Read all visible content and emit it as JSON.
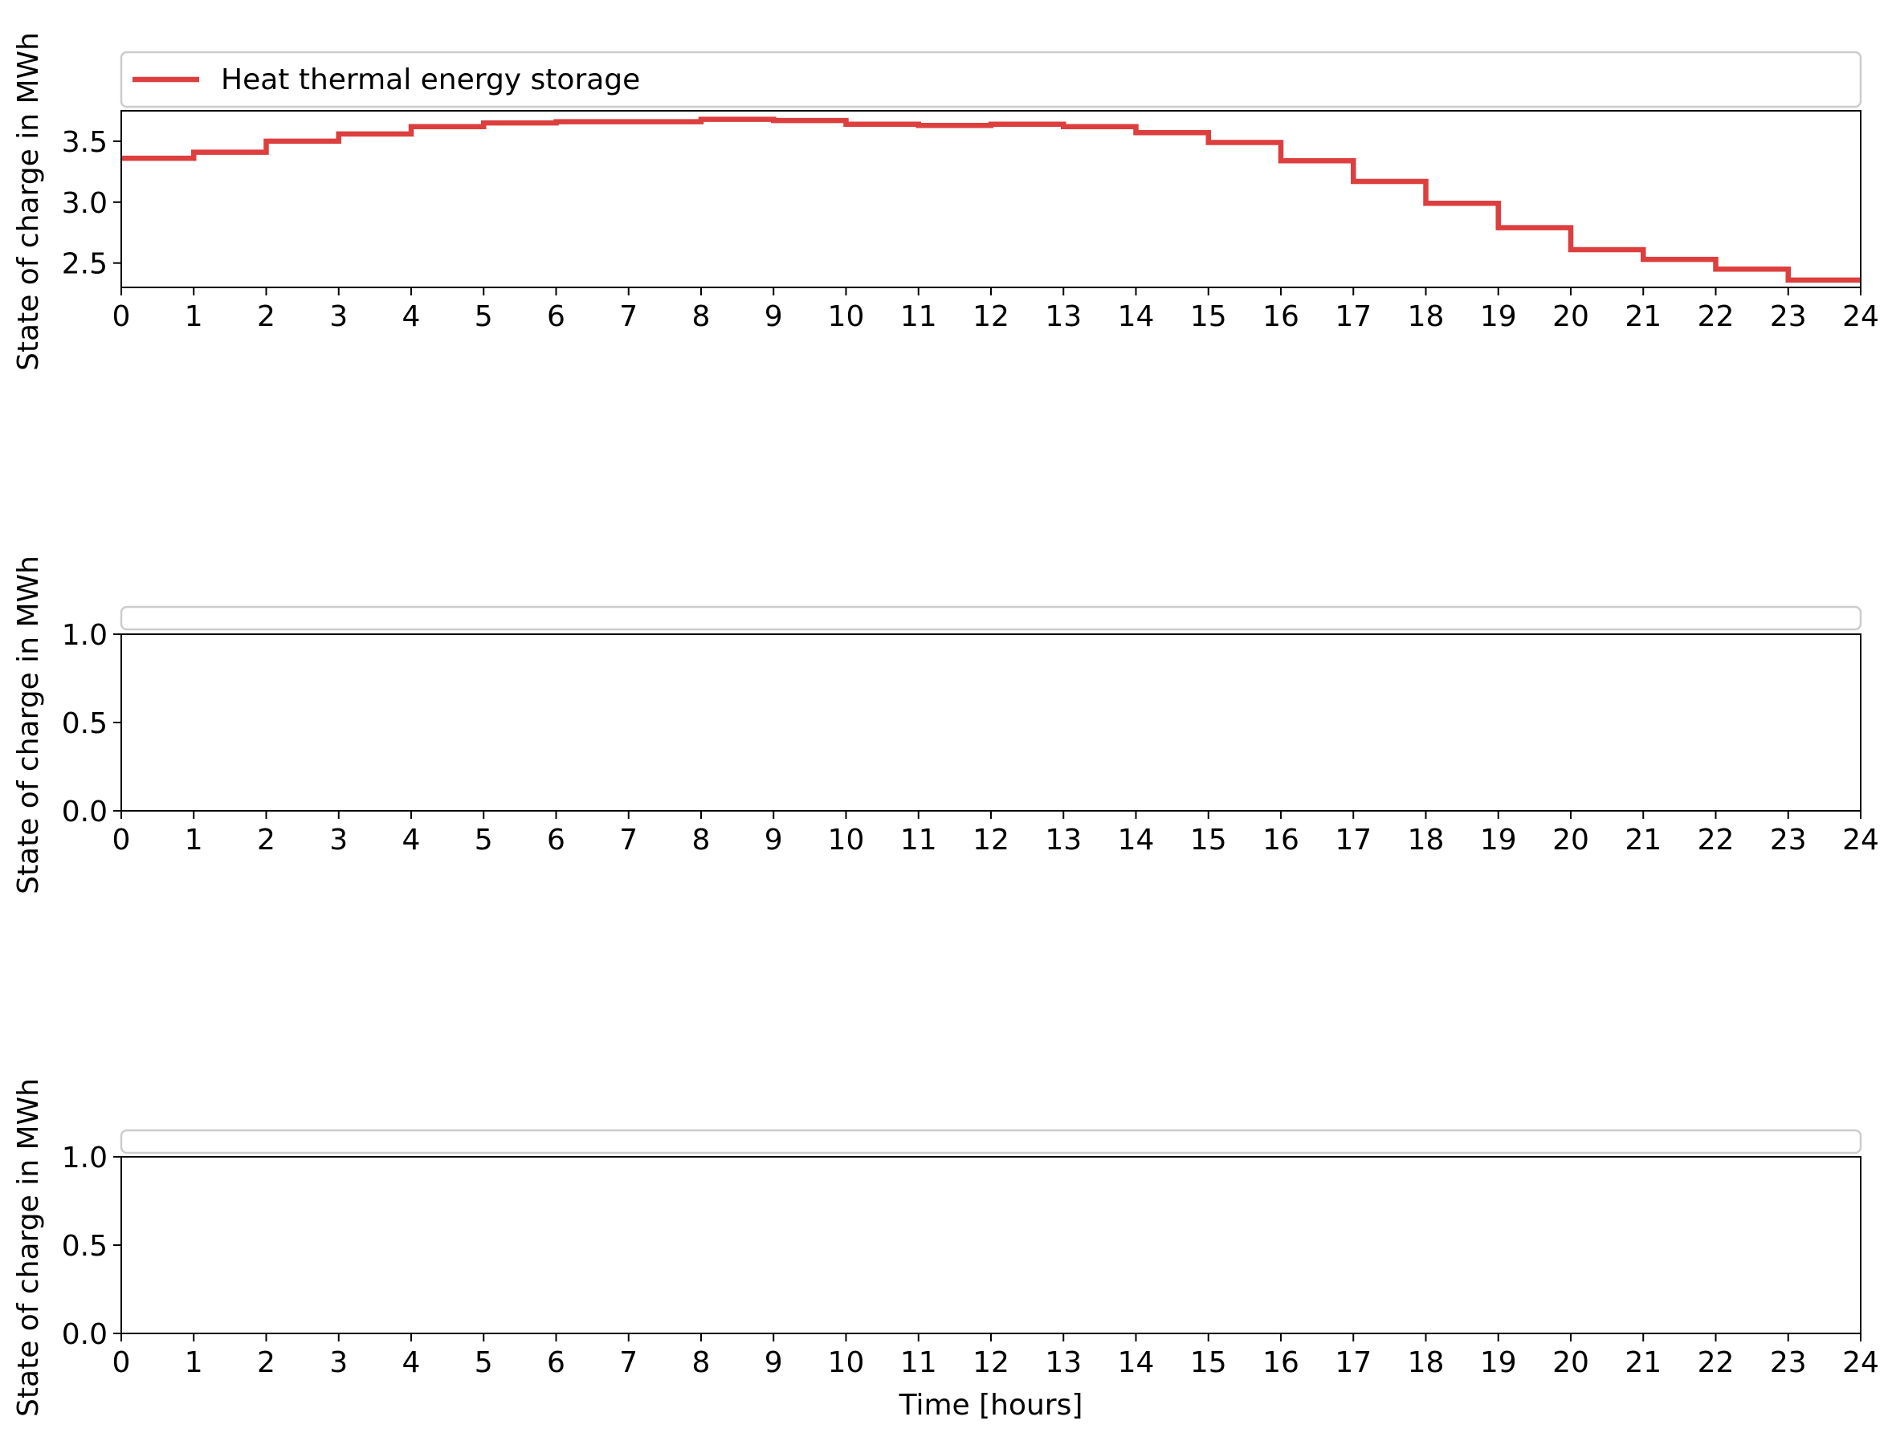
{
  "chart_data": [
    {
      "type": "line",
      "step": "post",
      "xlabel": "",
      "ylabel": "State of charge in MWh",
      "xlim": [
        0,
        24
      ],
      "ylim": [
        2.3,
        3.75
      ],
      "xticks": [
        0,
        1,
        2,
        3,
        4,
        5,
        6,
        7,
        8,
        9,
        10,
        11,
        12,
        13,
        14,
        15,
        16,
        17,
        18,
        19,
        20,
        21,
        22,
        23,
        24
      ],
      "yticks": [
        2.5,
        3.0,
        3.5
      ],
      "ytick_labels": [
        "2.5",
        "3.0",
        "3.5"
      ],
      "grid": false,
      "legend": "top, above plot",
      "series": [
        {
          "name": "Heat thermal energy storage",
          "color": "#dd3e3e",
          "x": [
            0,
            1,
            2,
            3,
            4,
            5,
            6,
            7,
            8,
            9,
            10,
            11,
            12,
            13,
            14,
            15,
            16,
            17,
            18,
            19,
            20,
            21,
            22,
            23,
            24
          ],
          "y": [
            3.36,
            3.41,
            3.5,
            3.56,
            3.62,
            3.65,
            3.66,
            3.66,
            3.68,
            3.67,
            3.64,
            3.63,
            3.64,
            3.62,
            3.57,
            3.49,
            3.34,
            3.17,
            2.99,
            2.79,
            2.61,
            2.53,
            2.45,
            2.36,
            2.36
          ]
        }
      ]
    },
    {
      "type": "line",
      "xlabel": "",
      "ylabel": "State of charge in MWh",
      "xlim": [
        0,
        24
      ],
      "ylim": [
        0,
        1
      ],
      "xticks": [
        0,
        1,
        2,
        3,
        4,
        5,
        6,
        7,
        8,
        9,
        10,
        11,
        12,
        13,
        14,
        15,
        16,
        17,
        18,
        19,
        20,
        21,
        22,
        23,
        24
      ],
      "yticks": [
        0,
        0.5,
        1.0
      ],
      "ytick_labels": [
        "0.0",
        "0.5",
        "1.0"
      ],
      "grid": false,
      "legend": "top, above plot (empty)",
      "series": []
    },
    {
      "type": "line",
      "xlabel": "Time [hours]",
      "ylabel": "State of charge in MWh",
      "xlim": [
        0,
        24
      ],
      "ylim": [
        0,
        1
      ],
      "xticks": [
        0,
        1,
        2,
        3,
        4,
        5,
        6,
        7,
        8,
        9,
        10,
        11,
        12,
        13,
        14,
        15,
        16,
        17,
        18,
        19,
        20,
        21,
        22,
        23,
        24
      ],
      "yticks": [
        0,
        0.5,
        1.0
      ],
      "ytick_labels": [
        "0.0",
        "0.5",
        "1.0"
      ],
      "grid": false,
      "legend": "top, above plot (empty)",
      "series": []
    }
  ]
}
